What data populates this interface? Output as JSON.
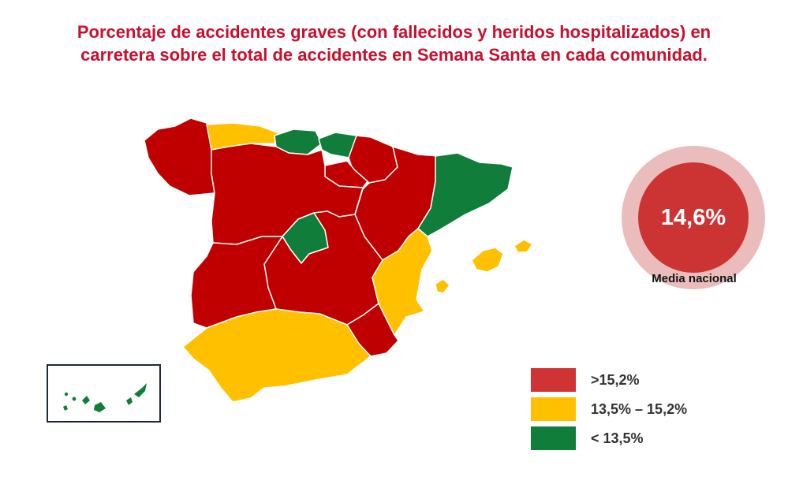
{
  "title": {
    "line1": "Porcentaje de accidentes graves (con fallecidos y heridos hospitalizados) en",
    "line2": "carretera sobre el total de accidentes en Semana Santa en cada comunidad."
  },
  "national_average": {
    "value": "14,6%",
    "label": "Media nacional"
  },
  "colors": {
    "high": "#c00000",
    "mid": "#ffc000",
    "low": "#107d3a",
    "ring": "#ebbcbc",
    "badge": "#cc3333",
    "title": "#c8102e"
  },
  "legend": [
    {
      "key": "high",
      "label": ">15,2%",
      "color": "#d03333"
    },
    {
      "key": "mid",
      "label": "13,5% – 15,2%",
      "color": "#ffc000"
    },
    {
      "key": "low",
      "label": "< 13,5%",
      "color": "#107d3a"
    }
  ],
  "regions": [
    {
      "name": "galicia",
      "category": "high"
    },
    {
      "name": "asturias",
      "category": "mid"
    },
    {
      "name": "cantabria",
      "category": "low"
    },
    {
      "name": "pais-vasco",
      "category": "low"
    },
    {
      "name": "navarra",
      "category": "high"
    },
    {
      "name": "la-rioja",
      "category": "high"
    },
    {
      "name": "aragon",
      "category": "high"
    },
    {
      "name": "cataluna",
      "category": "low"
    },
    {
      "name": "castilla-y-leon",
      "category": "high"
    },
    {
      "name": "madrid",
      "category": "low"
    },
    {
      "name": "castilla-la-mancha",
      "category": "high"
    },
    {
      "name": "extremadura",
      "category": "high"
    },
    {
      "name": "comunidad-valenciana",
      "category": "mid"
    },
    {
      "name": "murcia",
      "category": "high"
    },
    {
      "name": "andalucia",
      "category": "mid"
    },
    {
      "name": "baleares",
      "category": "mid"
    },
    {
      "name": "canarias",
      "category": "low"
    }
  ]
}
